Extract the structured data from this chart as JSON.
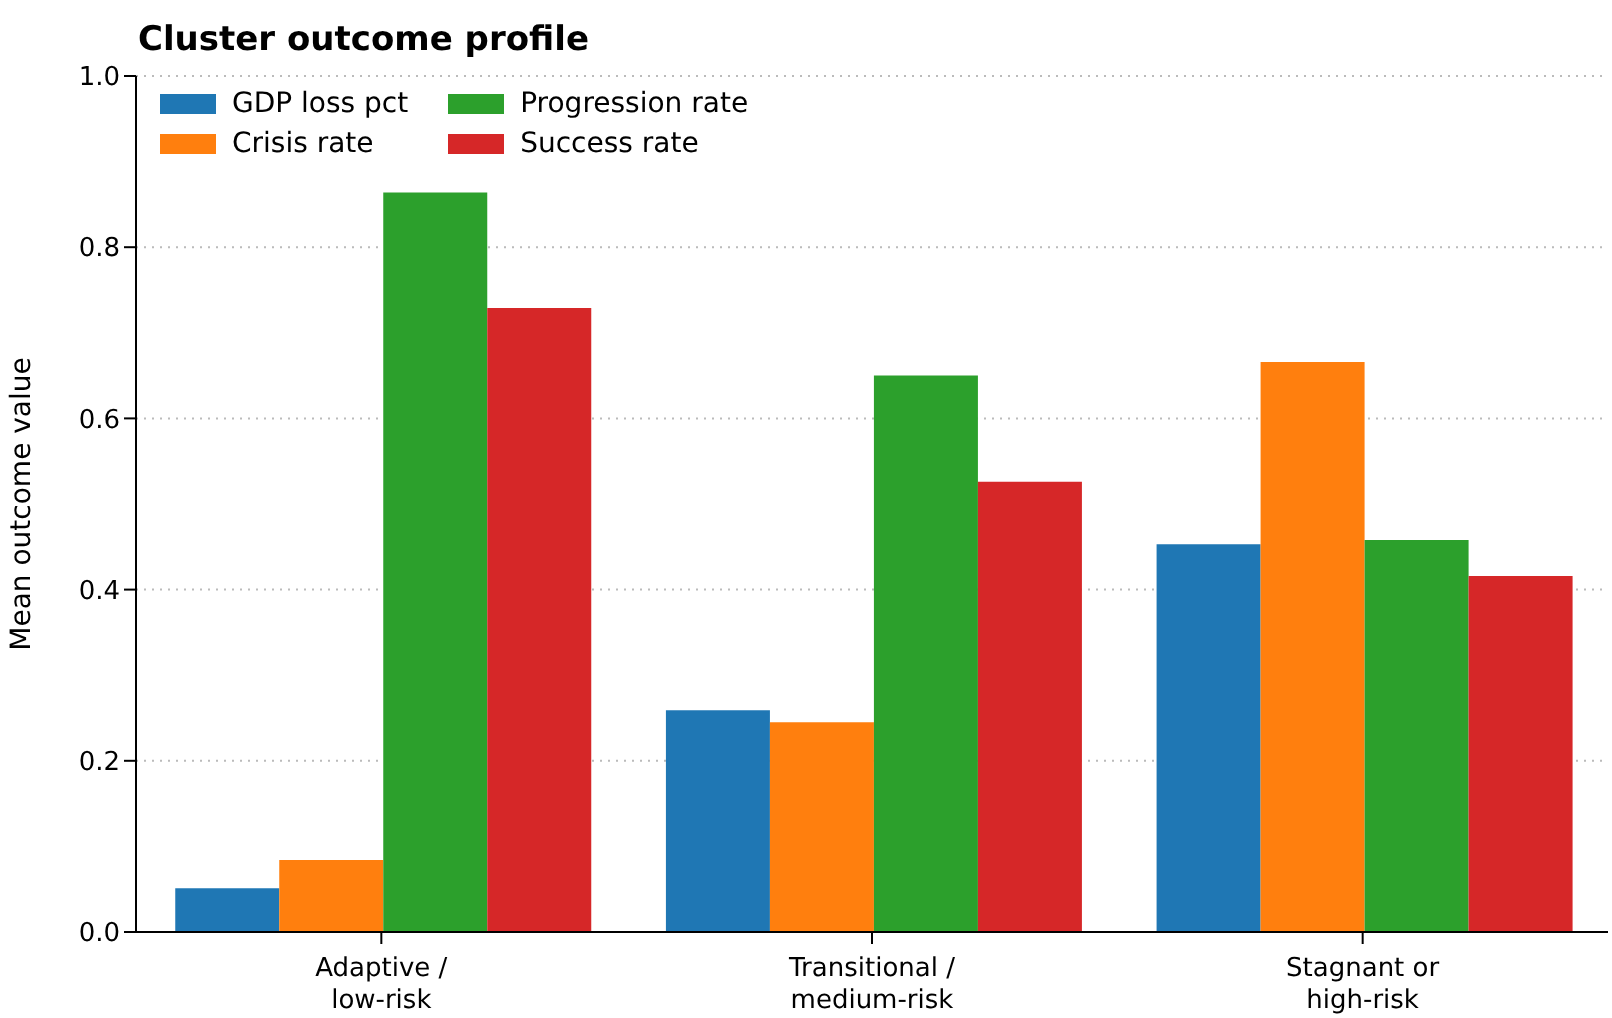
{
  "chart_data": {
    "type": "bar",
    "title": "Cluster outcome profile",
    "ylabel": "Mean outcome value",
    "categories": [
      "Adaptive /\nlow-risk",
      "Transitional /\nmedium-risk",
      "Stagnant or\nhigh-risk"
    ],
    "series": [
      {
        "name": "GDP loss pct",
        "color": "#1f77b4",
        "values": [
          0.051,
          0.259,
          0.453
        ]
      },
      {
        "name": "Crisis rate",
        "color": "#ff7f0e",
        "values": [
          0.084,
          0.245,
          0.666
        ]
      },
      {
        "name": "Progression rate",
        "color": "#2ca02c",
        "values": [
          0.864,
          0.65,
          0.458
        ]
      },
      {
        "name": "Success rate",
        "color": "#d62728",
        "values": [
          0.729,
          0.526,
          0.416
        ]
      }
    ],
    "ylim": [
      0,
      1
    ],
    "yticks": [
      {
        "value": 0,
        "label": "0.0"
      },
      {
        "value": 0.2,
        "label": "0.2"
      },
      {
        "value": 0.4,
        "label": "0.4"
      },
      {
        "value": 0.6,
        "label": "0.6"
      },
      {
        "value": 0.8,
        "label": "0.8"
      },
      {
        "value": 1,
        "label": "1.0"
      }
    ],
    "grid": "y",
    "legend": "top left"
  }
}
